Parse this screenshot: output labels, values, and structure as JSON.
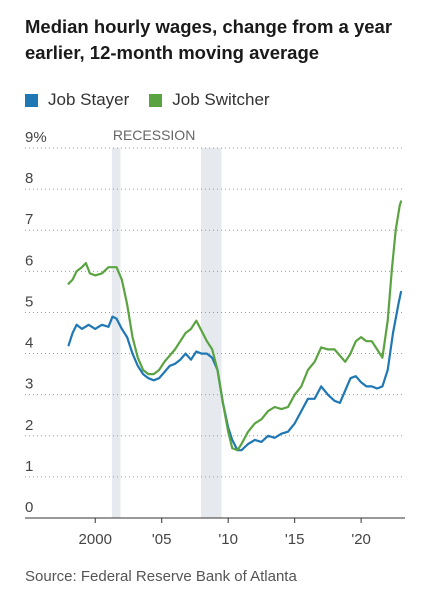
{
  "chart_data": {
    "type": "line",
    "title": "Median hourly wages, change from a year earlier, 12-month moving average",
    "source": "Source: Federal Reserve Bank of Atlanta",
    "y_ticks": [
      "0",
      "1",
      "2",
      "3",
      "4",
      "5",
      "6",
      "7",
      "8",
      "9%"
    ],
    "x_ticks": [
      {
        "value": 2000,
        "label": "2000"
      },
      {
        "value": 2005,
        "label": "'05"
      },
      {
        "value": 2010,
        "label": "'10"
      },
      {
        "value": 2015,
        "label": "'15"
      },
      {
        "value": 2020,
        "label": "'20"
      }
    ],
    "xlim": [
      1997.5,
      2023.3
    ],
    "ylim": [
      0,
      9
    ],
    "grid": "horizontal dotted",
    "recessions": [
      {
        "start": 2001.25,
        "end": 2001.9,
        "label": "RECESSION"
      },
      {
        "start": 2007.95,
        "end": 2009.5,
        "label": ""
      }
    ],
    "series": [
      {
        "name": "Job Stayer",
        "color": "#1f77b4",
        "points": [
          [
            1998.0,
            4.2
          ],
          [
            1998.3,
            4.5
          ],
          [
            1998.6,
            4.7
          ],
          [
            1999.0,
            4.6
          ],
          [
            1999.5,
            4.7
          ],
          [
            2000.0,
            4.6
          ],
          [
            2000.5,
            4.7
          ],
          [
            2001.0,
            4.65
          ],
          [
            2001.3,
            4.9
          ],
          [
            2001.6,
            4.85
          ],
          [
            2002.0,
            4.6
          ],
          [
            2002.4,
            4.4
          ],
          [
            2002.8,
            4.0
          ],
          [
            2003.2,
            3.7
          ],
          [
            2003.6,
            3.5
          ],
          [
            2004.0,
            3.4
          ],
          [
            2004.4,
            3.35
          ],
          [
            2004.8,
            3.4
          ],
          [
            2005.2,
            3.55
          ],
          [
            2005.6,
            3.7
          ],
          [
            2006.0,
            3.75
          ],
          [
            2006.4,
            3.85
          ],
          [
            2006.8,
            4.0
          ],
          [
            2007.2,
            3.85
          ],
          [
            2007.6,
            4.05
          ],
          [
            2008.0,
            4.0
          ],
          [
            2008.4,
            4.0
          ],
          [
            2008.8,
            3.9
          ],
          [
            2009.2,
            3.6
          ],
          [
            2009.6,
            2.8
          ],
          [
            2010.0,
            2.2
          ],
          [
            2010.3,
            1.9
          ],
          [
            2010.7,
            1.65
          ],
          [
            2011.0,
            1.65
          ],
          [
            2011.5,
            1.8
          ],
          [
            2012.0,
            1.9
          ],
          [
            2012.5,
            1.85
          ],
          [
            2013.0,
            2.0
          ],
          [
            2013.5,
            1.95
          ],
          [
            2014.0,
            2.05
          ],
          [
            2014.5,
            2.1
          ],
          [
            2015.0,
            2.3
          ],
          [
            2015.5,
            2.6
          ],
          [
            2016.0,
            2.9
          ],
          [
            2016.5,
            2.9
          ],
          [
            2017.0,
            3.2
          ],
          [
            2017.5,
            3.0
          ],
          [
            2018.0,
            2.85
          ],
          [
            2018.4,
            2.8
          ],
          [
            2018.8,
            3.1
          ],
          [
            2019.2,
            3.4
          ],
          [
            2019.6,
            3.45
          ],
          [
            2020.0,
            3.3
          ],
          [
            2020.4,
            3.2
          ],
          [
            2020.8,
            3.2
          ],
          [
            2021.2,
            3.15
          ],
          [
            2021.6,
            3.2
          ],
          [
            2022.0,
            3.6
          ],
          [
            2022.4,
            4.5
          ],
          [
            2022.8,
            5.2
          ],
          [
            2023.0,
            5.5
          ]
        ]
      },
      {
        "name": "Job Switcher",
        "color": "#5aa341",
        "points": [
          [
            1998.0,
            5.7
          ],
          [
            1998.3,
            5.8
          ],
          [
            1998.6,
            6.0
          ],
          [
            1999.0,
            6.1
          ],
          [
            1999.3,
            6.2
          ],
          [
            1999.6,
            5.95
          ],
          [
            2000.0,
            5.9
          ],
          [
            2000.5,
            5.95
          ],
          [
            2001.0,
            6.1
          ],
          [
            2001.3,
            6.1
          ],
          [
            2001.6,
            6.1
          ],
          [
            2002.0,
            5.8
          ],
          [
            2002.4,
            5.2
          ],
          [
            2002.8,
            4.4
          ],
          [
            2003.2,
            3.9
          ],
          [
            2003.6,
            3.6
          ],
          [
            2004.0,
            3.5
          ],
          [
            2004.4,
            3.5
          ],
          [
            2004.8,
            3.6
          ],
          [
            2005.2,
            3.8
          ],
          [
            2005.6,
            3.95
          ],
          [
            2006.0,
            4.1
          ],
          [
            2006.4,
            4.3
          ],
          [
            2006.8,
            4.5
          ],
          [
            2007.2,
            4.6
          ],
          [
            2007.6,
            4.8
          ],
          [
            2008.0,
            4.55
          ],
          [
            2008.4,
            4.3
          ],
          [
            2008.8,
            4.1
          ],
          [
            2009.2,
            3.6
          ],
          [
            2009.6,
            2.8
          ],
          [
            2010.0,
            2.1
          ],
          [
            2010.3,
            1.7
          ],
          [
            2010.7,
            1.65
          ],
          [
            2011.0,
            1.8
          ],
          [
            2011.5,
            2.1
          ],
          [
            2012.0,
            2.3
          ],
          [
            2012.5,
            2.4
          ],
          [
            2013.0,
            2.6
          ],
          [
            2013.5,
            2.7
          ],
          [
            2014.0,
            2.65
          ],
          [
            2014.5,
            2.7
          ],
          [
            2015.0,
            3.0
          ],
          [
            2015.5,
            3.2
          ],
          [
            2016.0,
            3.6
          ],
          [
            2016.5,
            3.8
          ],
          [
            2017.0,
            4.15
          ],
          [
            2017.5,
            4.1
          ],
          [
            2018.0,
            4.1
          ],
          [
            2018.4,
            3.95
          ],
          [
            2018.8,
            3.8
          ],
          [
            2019.2,
            4.0
          ],
          [
            2019.6,
            4.3
          ],
          [
            2020.0,
            4.4
          ],
          [
            2020.4,
            4.3
          ],
          [
            2020.8,
            4.3
          ],
          [
            2021.2,
            4.1
          ],
          [
            2021.6,
            3.9
          ],
          [
            2022.0,
            4.8
          ],
          [
            2022.3,
            6.0
          ],
          [
            2022.6,
            7.0
          ],
          [
            2022.9,
            7.6
          ],
          [
            2023.0,
            7.7
          ]
        ]
      }
    ]
  }
}
